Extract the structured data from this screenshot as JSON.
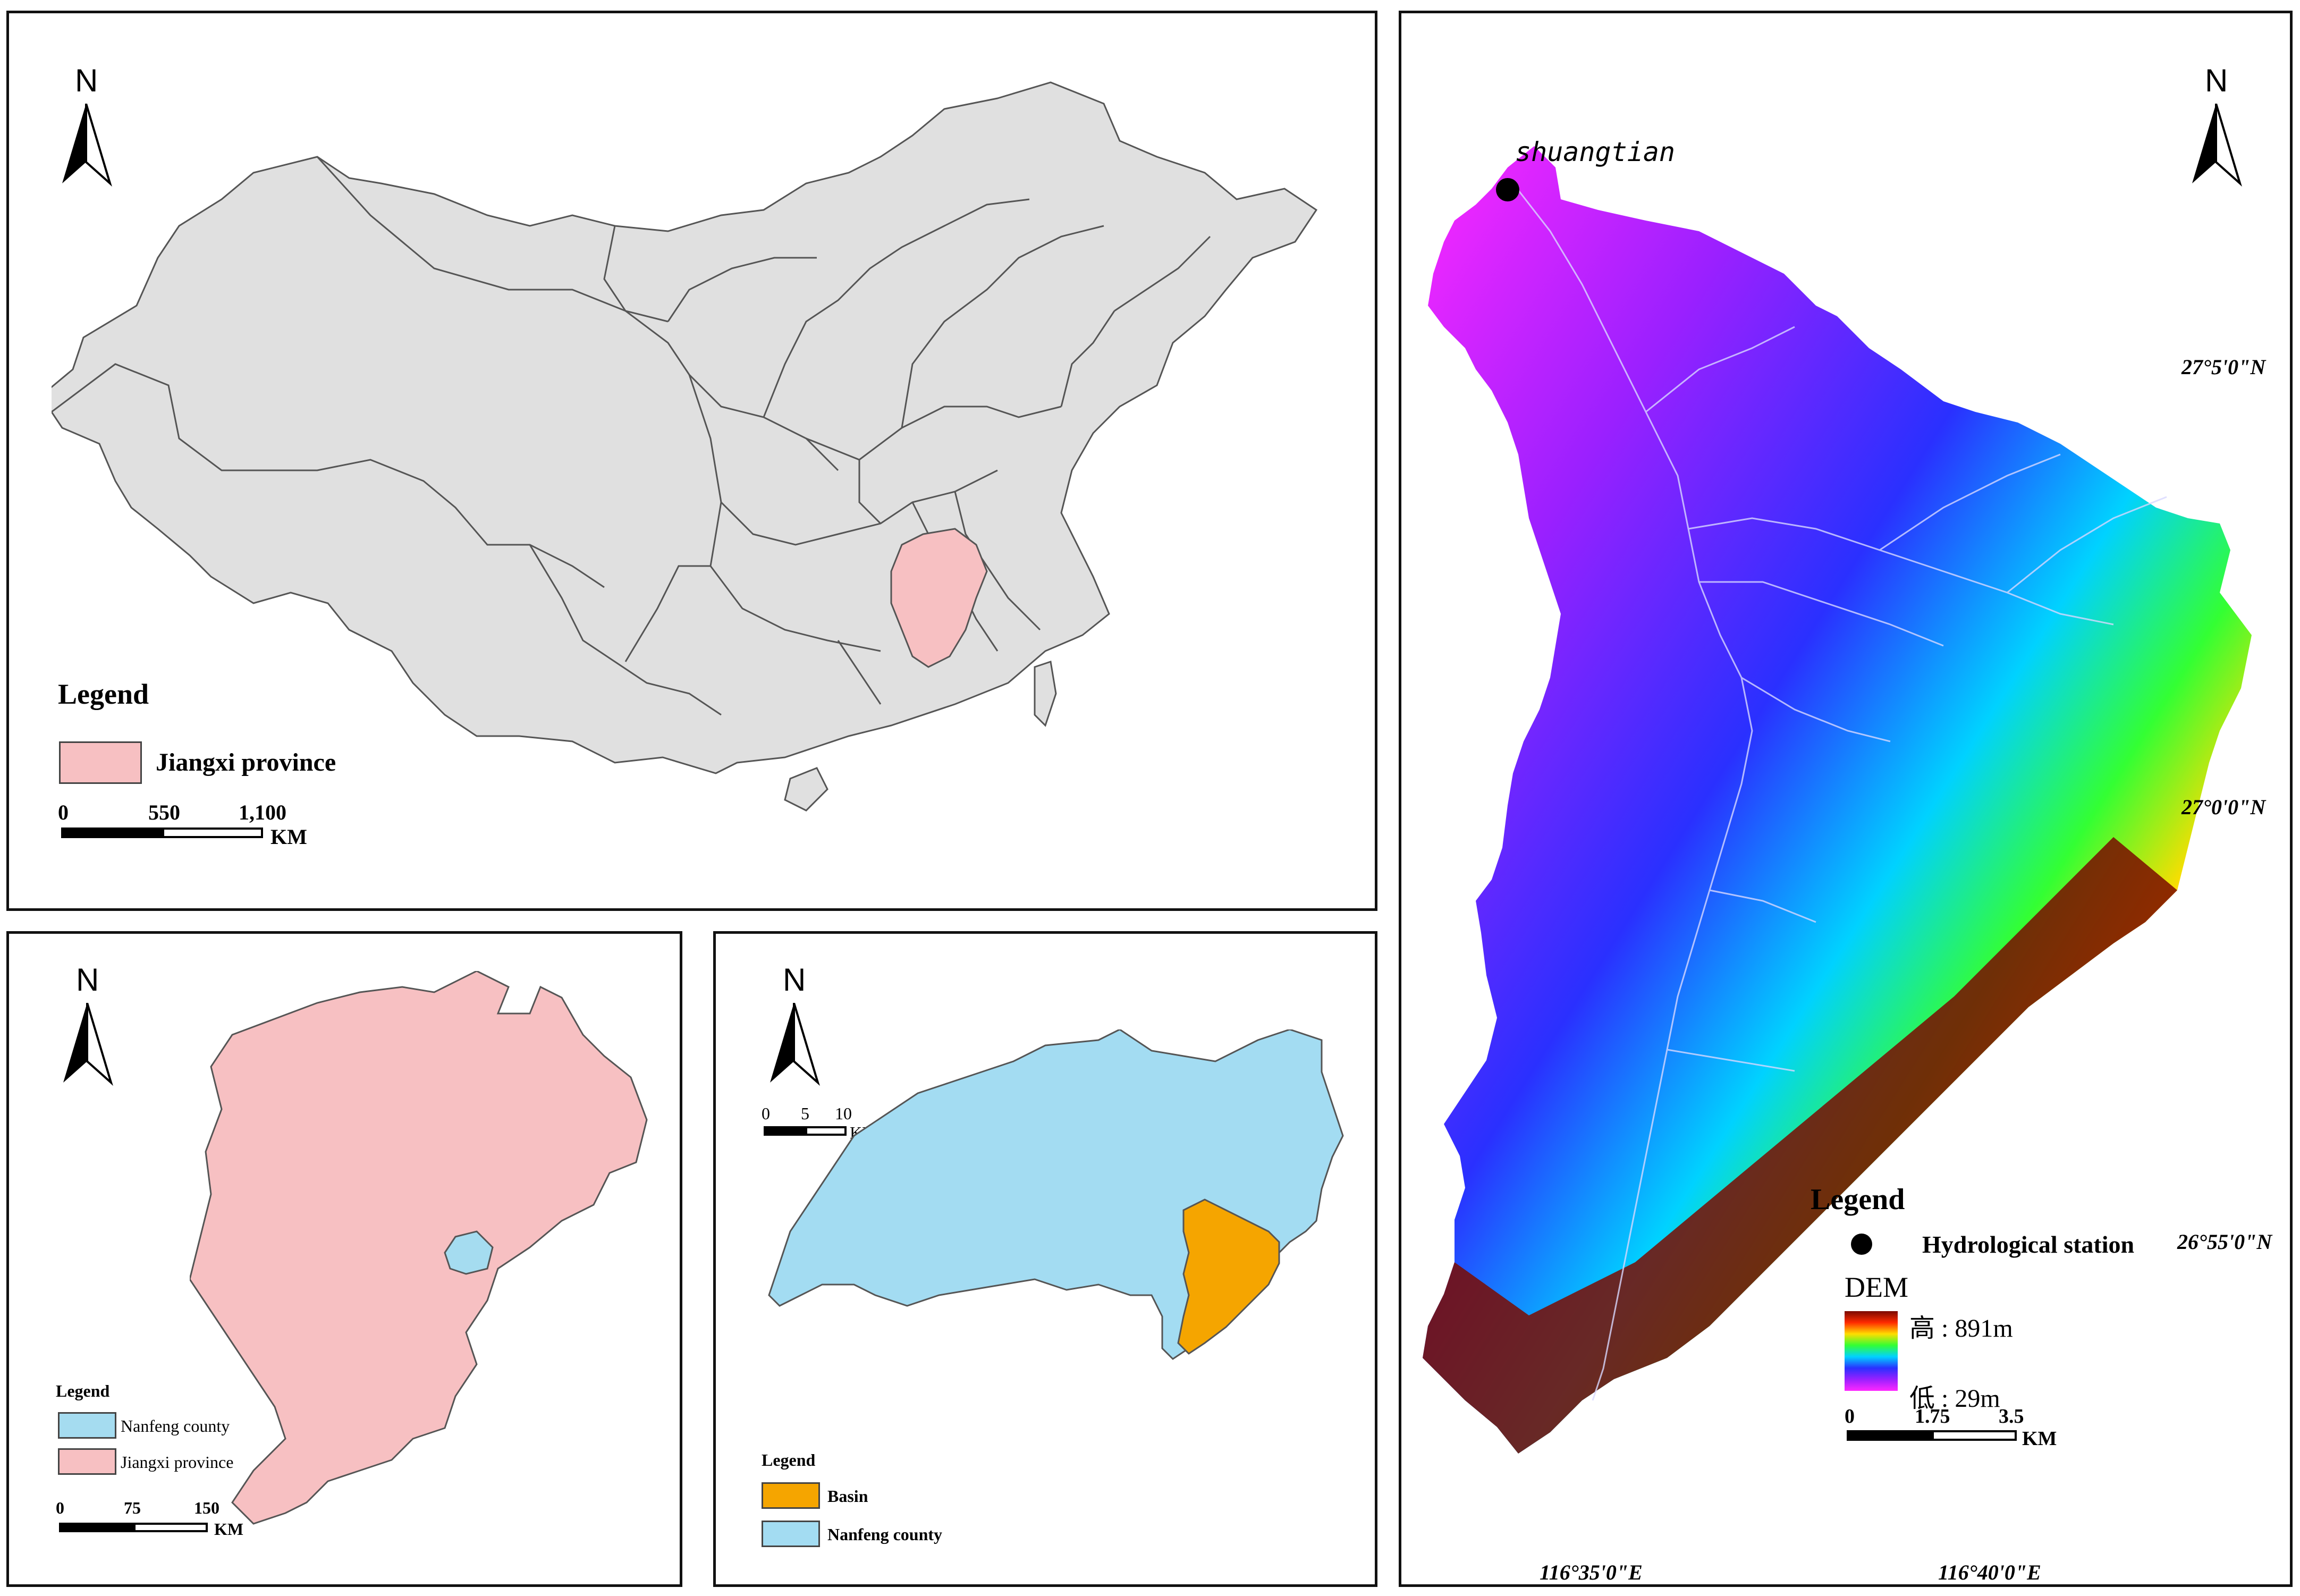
{
  "china_panel": {
    "north": "N",
    "legend_title": "Legend",
    "legend_item": "Jiangxi province",
    "legend_color": "#f7c0c2",
    "base_color": "#e0e0e0",
    "scale_ticks": [
      "0",
      "550",
      "1,100"
    ],
    "scale_unit": "KM"
  },
  "jiangxi_panel": {
    "north": "N",
    "legend_title": "Legend",
    "items": [
      {
        "label": "Nanfeng county",
        "color": "#a5dcf0"
      },
      {
        "label": "Jiangxi province",
        "color": "#f7c0c2"
      }
    ],
    "scale_ticks": [
      "0",
      "75",
      "150"
    ],
    "scale_unit": "KM"
  },
  "nanfeng_panel": {
    "north": "N",
    "scale_ticks": [
      "0",
      "5",
      "10"
    ],
    "scale_unit": "KM",
    "legend_title": "Legend",
    "items": [
      {
        "label": "Basin",
        "color": "#f5a500"
      },
      {
        "label": "Nanfeng county",
        "color": "#a3dcf2"
      }
    ]
  },
  "dem_panel": {
    "north": "N",
    "station_label": "shuangtian",
    "lat_labels": [
      "27°5'0\"N",
      "27°0'0\"N",
      "26°55'0\"N"
    ],
    "lon_labels": [
      "116°35'0\"E",
      "116°40'0\"E"
    ],
    "legend_title": "Legend",
    "station_legend": "Hydrological station",
    "dem_title": "DEM",
    "dem_high": "高 : 891m",
    "dem_low": "低 : 29m",
    "scale_ticks": [
      "0",
      "1.75",
      "3.5"
    ],
    "scale_unit": "KM",
    "ramp_colors": [
      "#7a0a00",
      "#ff2a00",
      "#ffdd00",
      "#33ff33",
      "#00d2ff",
      "#2a30ff",
      "#9a20ff",
      "#ff28ff"
    ]
  }
}
